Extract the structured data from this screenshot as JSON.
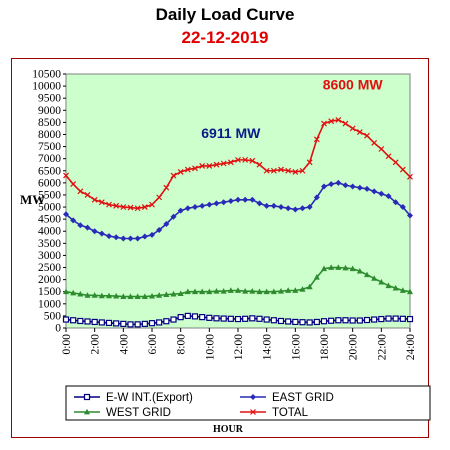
{
  "title": "Daily Load Curve",
  "subtitle": "22-12-2019",
  "colors": {
    "title": "#000000",
    "subtitle": "#e00000",
    "frame": "#a00000",
    "plot_background": "#ccffcc",
    "ew_int": "#000080",
    "east_grid": "#2a2ab8",
    "west_grid": "#2e8b2e",
    "total": "#e01010"
  },
  "chart_data": {
    "type": "line",
    "xlabel": "HOUR",
    "ylabel": "MW",
    "ylim": [
      0,
      10500
    ],
    "ytick_step": 500,
    "yticks": [
      "0",
      "500",
      "1000",
      "1500",
      "2000",
      "2500",
      "3000",
      "3500",
      "4000",
      "4500",
      "5000",
      "5500",
      "6000",
      "6500",
      "7000",
      "7500",
      "8000",
      "8500",
      "9000",
      "9500",
      "10000",
      "10500"
    ],
    "xticks": [
      "0:00",
      "2:00",
      "4:00",
      "6:00",
      "8:00",
      "10:00",
      "12:00",
      "14:00",
      "16:00",
      "18:00",
      "20:00",
      "22:00",
      "24:00"
    ],
    "grid": false,
    "legend": "bottom",
    "x": [
      0,
      0.5,
      1,
      1.5,
      2,
      2.5,
      3,
      3.5,
      4,
      4.5,
      5,
      5.5,
      6,
      6.5,
      7,
      7.5,
      8,
      8.5,
      9,
      9.5,
      10,
      10.5,
      11,
      11.5,
      12,
      12.5,
      13,
      13.5,
      14,
      14.5,
      15,
      15.5,
      16,
      16.5,
      17,
      17.5,
      18,
      18.5,
      19,
      19.5,
      20,
      20.5,
      21,
      21.5,
      22,
      22.5,
      23,
      23.5,
      24
    ],
    "series": [
      {
        "name": "E-W INT.(Export)",
        "marker": "square",
        "values": [
          350,
          320,
          290,
          270,
          250,
          230,
          210,
          190,
          170,
          150,
          150,
          170,
          200,
          230,
          280,
          350,
          450,
          500,
          480,
          450,
          420,
          400,
          390,
          380,
          370,
          380,
          400,
          380,
          350,
          320,
          290,
          270,
          250,
          240,
          230,
          250,
          280,
          300,
          320,
          320,
          310,
          310,
          330,
          350,
          370,
          390,
          390,
          380,
          370
        ]
      },
      {
        "name": "EAST GRID",
        "marker": "diamond",
        "values": [
          4700,
          4450,
          4250,
          4150,
          4000,
          3900,
          3800,
          3750,
          3700,
          3700,
          3700,
          3780,
          3850,
          4050,
          4300,
          4600,
          4850,
          4950,
          5000,
          5050,
          5100,
          5150,
          5200,
          5250,
          5300,
          5300,
          5300,
          5150,
          5050,
          5050,
          5000,
          4950,
          4900,
          4950,
          5000,
          5400,
          5850,
          5950,
          6000,
          5900,
          5850,
          5800,
          5750,
          5650,
          5550,
          5450,
          5200,
          5000,
          4650
        ]
      },
      {
        "name": "WEST GRID",
        "marker": "triangle",
        "values": [
          1500,
          1450,
          1400,
          1350,
          1350,
          1330,
          1330,
          1320,
          1300,
          1300,
          1300,
          1300,
          1320,
          1350,
          1380,
          1400,
          1420,
          1500,
          1500,
          1500,
          1500,
          1520,
          1520,
          1550,
          1550,
          1520,
          1520,
          1500,
          1500,
          1500,
          1520,
          1550,
          1550,
          1600,
          1700,
          2100,
          2450,
          2500,
          2500,
          2480,
          2450,
          2350,
          2200,
          2050,
          1900,
          1750,
          1650,
          1550,
          1500
        ]
      },
      {
        "name": "TOTAL",
        "marker": "x",
        "values": [
          6300,
          5950,
          5650,
          5500,
          5300,
          5200,
          5100,
          5050,
          5000,
          4980,
          4950,
          5000,
          5100,
          5400,
          5800,
          6300,
          6450,
          6550,
          6600,
          6700,
          6700,
          6750,
          6800,
          6850,
          6950,
          6950,
          6911,
          6750,
          6500,
          6500,
          6550,
          6500,
          6450,
          6500,
          6850,
          7800,
          8450,
          8550,
          8600,
          8450,
          8250,
          8100,
          7950,
          7650,
          7400,
          7100,
          6850,
          6550,
          6250
        ]
      }
    ],
    "annotations": [
      {
        "text": "6911 MW",
        "x": 11.5,
        "y": 7850,
        "color": "#0a1a8a"
      },
      {
        "text": "8600 MW",
        "x": 20,
        "y": 9850,
        "color": "#e01010"
      }
    ]
  }
}
